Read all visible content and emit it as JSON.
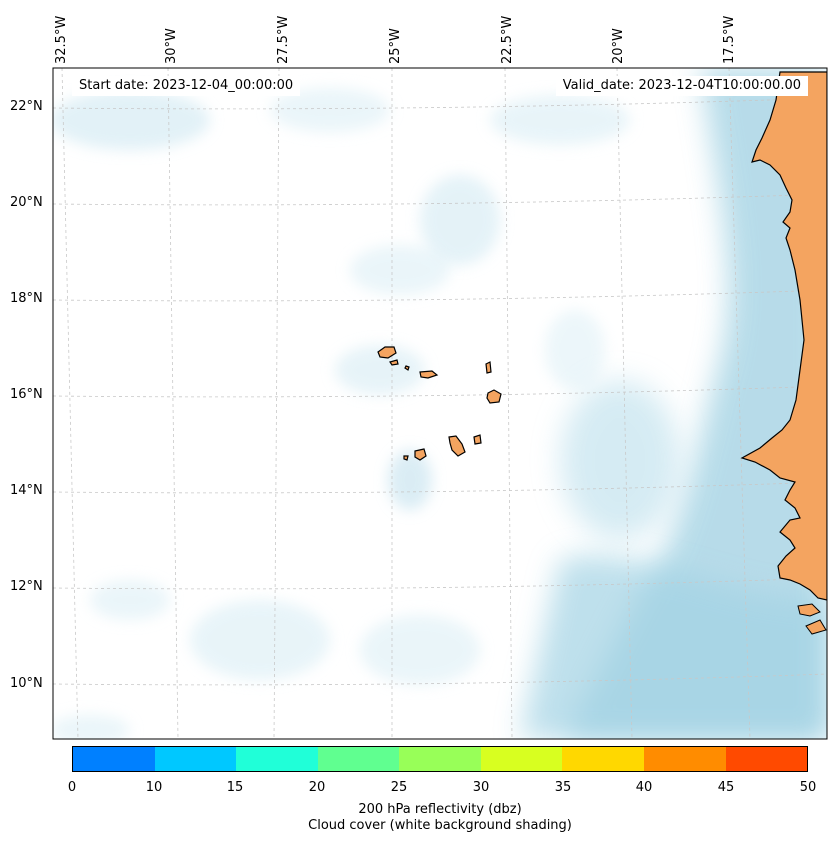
{
  "map": {
    "start_date": "Start date: 2023-12-04_00:00:00",
    "valid_date": "Valid_date: 2023-12-04T10:00:00.00",
    "lon_labels": [
      "32.5°W",
      "30°W",
      "27.5°W",
      "25°W",
      "22.5°W",
      "20°W",
      "17.5°W"
    ],
    "lat_labels": [
      "22°N",
      "20°N",
      "18°N",
      "16°N",
      "14°N",
      "12°N",
      "10°N"
    ],
    "land_color": "#f4a460",
    "ocean_color": "#ffffff",
    "cloud_color": "#a9d7e6"
  },
  "colorbar": {
    "ticks": [
      "0",
      "10",
      "15",
      "20",
      "25",
      "30",
      "35",
      "40",
      "45",
      "50"
    ],
    "colors": [
      "#0080ff",
      "#00c8ff",
      "#20ffd8",
      "#60ff90",
      "#98ff58",
      "#d8ff20",
      "#ffd800",
      "#ff8c00",
      "#ff4a00"
    ],
    "label_line1": "200 hPa reflectivity (dbz)",
    "label_line2": "Cloud cover (white background shading)"
  }
}
